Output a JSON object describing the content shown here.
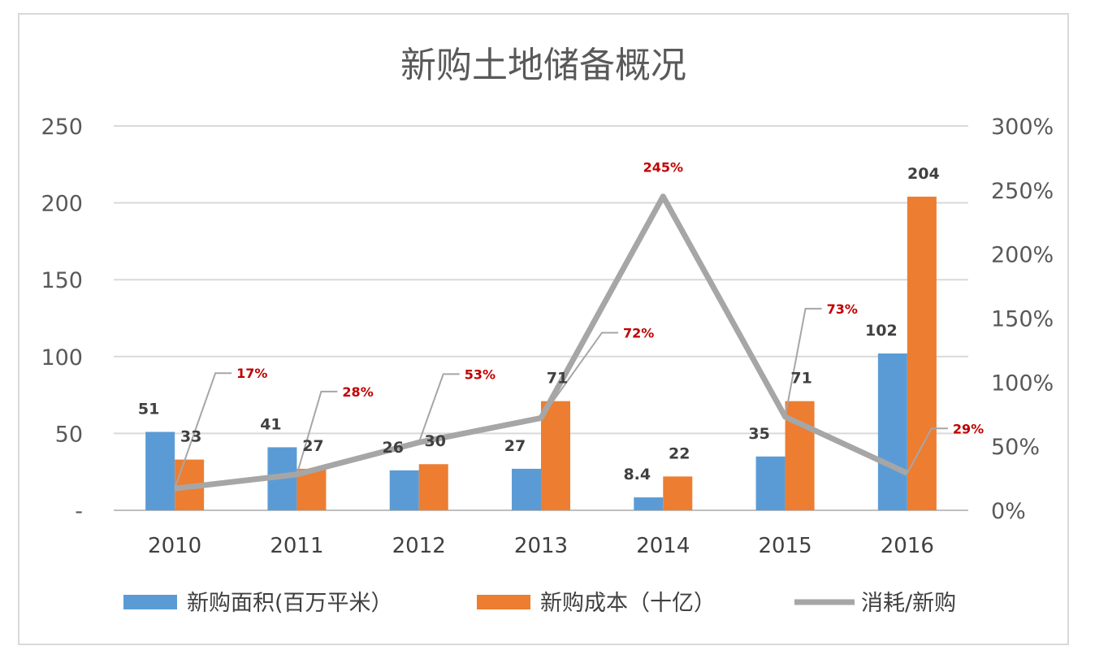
{
  "chart_data": {
    "type": "bar",
    "title": "新购土地储备概况",
    "categories": [
      "2010",
      "2011",
      "2012",
      "2013",
      "2014",
      "2015",
      "2016"
    ],
    "series": [
      {
        "name": "新购面积(百万平米）",
        "type": "bar",
        "axis": "left",
        "color": "#5b9bd5",
        "values": [
          51,
          41,
          26,
          27,
          8.4,
          35,
          102
        ],
        "labels": [
          "51",
          "41",
          "26",
          "27",
          "8.4",
          "35",
          "102"
        ]
      },
      {
        "name": "新购成本（十亿）",
        "type": "bar",
        "axis": "left",
        "color": "#ed7d31",
        "values": [
          33,
          27,
          30,
          71,
          22,
          71,
          204
        ],
        "labels": [
          "33",
          "27",
          "30",
          "71",
          "22",
          "71",
          "204"
        ]
      },
      {
        "name": "消耗/新购",
        "type": "line",
        "axis": "right",
        "color": "#a6a6a6",
        "values": [
          17,
          28,
          53,
          72,
          245,
          73,
          29
        ],
        "labels": [
          "17%",
          "28%",
          "53%",
          "72%",
          "245%",
          "73%",
          "29%"
        ]
      }
    ],
    "left_axis": {
      "ylim": [
        0,
        250
      ],
      "ticks": [
        "-",
        "50",
        "100",
        "150",
        "200",
        "250"
      ],
      "tick_values": [
        0,
        50,
        100,
        150,
        200,
        250
      ]
    },
    "right_axis": {
      "ylim": [
        0,
        300
      ],
      "ticks": [
        "0%",
        "50%",
        "100%",
        "150%",
        "200%",
        "250%",
        "300%"
      ],
      "tick_values": [
        0,
        50,
        100,
        150,
        200,
        250,
        300
      ]
    },
    "grid": true,
    "legend": "bottom"
  }
}
